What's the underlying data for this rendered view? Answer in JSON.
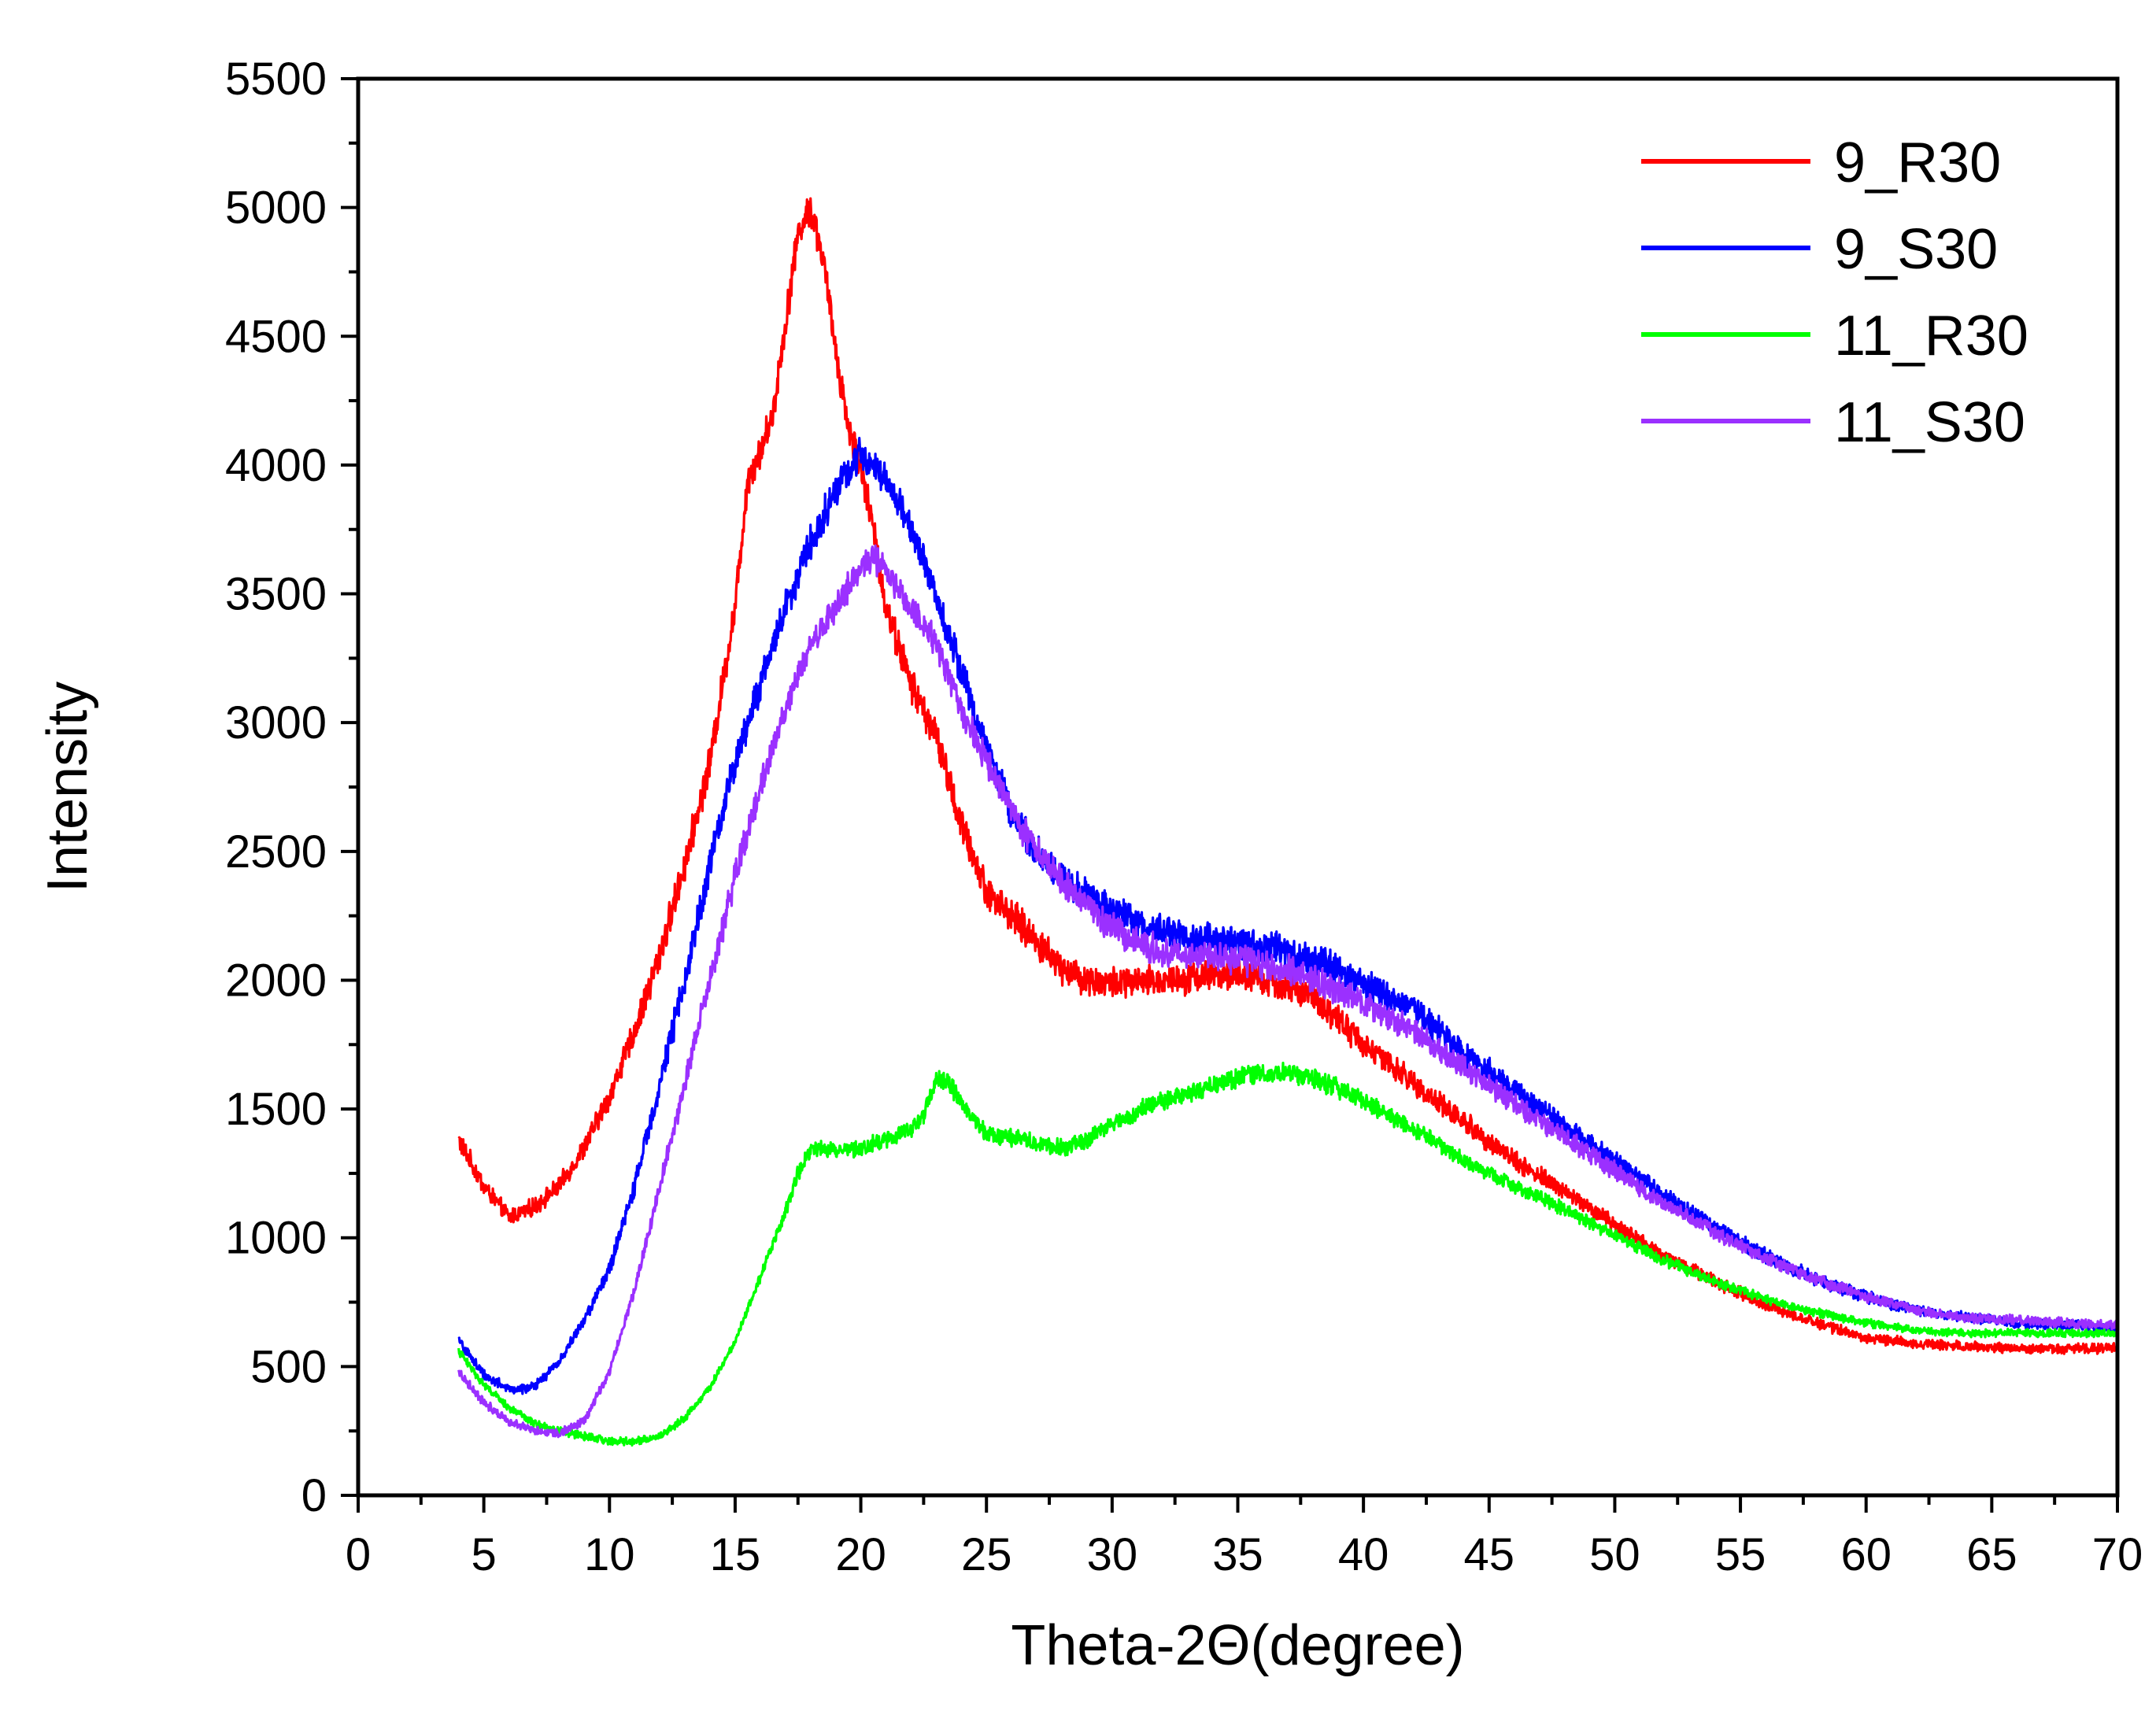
{
  "chart_data": {
    "type": "line",
    "title": "",
    "xlabel": "Theta-2Θ(degree)",
    "ylabel": "Intensity",
    "xlim": [
      0,
      70
    ],
    "ylim": [
      0,
      5500
    ],
    "x_ticks": [
      0,
      5,
      10,
      15,
      20,
      25,
      30,
      35,
      40,
      45,
      50,
      55,
      60,
      65,
      70
    ],
    "y_ticks": [
      0,
      500,
      1000,
      1500,
      2000,
      2500,
      3000,
      3500,
      4000,
      4500,
      5000,
      5500
    ],
    "grid": false,
    "legend_position": "top-right",
    "noise_amplitude": [
      90,
      90,
      70,
      80
    ],
    "series": [
      {
        "name": "9_R30",
        "color": "#ff0000",
        "x": [
          4,
          5,
          6,
          7,
          8,
          9,
          10,
          11,
          12,
          13,
          14,
          15,
          15.5,
          16,
          16.5,
          17,
          17.5,
          18,
          18.5,
          19,
          19.5,
          20,
          20.5,
          21,
          22,
          23,
          24,
          25,
          26,
          27,
          28,
          29,
          30,
          31,
          32,
          33,
          34,
          35,
          36,
          37,
          38,
          39,
          40,
          42,
          44,
          46,
          48,
          50,
          52,
          54,
          56,
          58,
          60,
          62,
          64,
          66,
          68,
          70
        ],
        "y": [
          1380,
          1200,
          1080,
          1120,
          1200,
          1350,
          1550,
          1800,
          2100,
          2450,
          2850,
          3450,
          3950,
          4050,
          4200,
          4550,
          4900,
          5000,
          4800,
          4450,
          4150,
          4000,
          3750,
          3450,
          3150,
          2950,
          2600,
          2350,
          2250,
          2150,
          2050,
          2000,
          1990,
          1990,
          2000,
          2010,
          2020,
          2020,
          2000,
          1970,
          1930,
          1850,
          1750,
          1600,
          1450,
          1300,
          1180,
          1050,
          930,
          830,
          740,
          670,
          610,
          590,
          580,
          570,
          570,
          570
        ]
      },
      {
        "name": "9_S30",
        "color": "#0000ff",
        "x": [
          4,
          5,
          6,
          7,
          8,
          9,
          10,
          11,
          12,
          13,
          14,
          15,
          16,
          17,
          18,
          19,
          20,
          21,
          22,
          23,
          24,
          25,
          26,
          27,
          28,
          29,
          30,
          31,
          32,
          33,
          34,
          35,
          36,
          37,
          38,
          39,
          40,
          42,
          44,
          46,
          48,
          50,
          52,
          54,
          56,
          58,
          60,
          62,
          64,
          66,
          68,
          70
        ],
        "y": [
          600,
          470,
          410,
          420,
          520,
          680,
          880,
          1200,
          1600,
          2000,
          2450,
          2850,
          3150,
          3450,
          3700,
          3900,
          4050,
          3950,
          3750,
          3500,
          3200,
          2900,
          2650,
          2500,
          2400,
          2330,
          2270,
          2220,
          2190,
          2170,
          2150,
          2140,
          2130,
          2110,
          2080,
          2040,
          1990,
          1880,
          1720,
          1570,
          1430,
          1300,
          1160,
          1040,
          930,
          840,
          770,
          720,
          690,
          670,
          660,
          650
        ]
      },
      {
        "name": "11_R30",
        "color": "#00ff00",
        "x": [
          4,
          5,
          6,
          7,
          8,
          9,
          10,
          11,
          12,
          13,
          14,
          15,
          16,
          17,
          17.5,
          18,
          19,
          20,
          21,
          22,
          22.5,
          23,
          23.5,
          24,
          25,
          26,
          27,
          28,
          29,
          30,
          31,
          32,
          33,
          34,
          35,
          36,
          37,
          38,
          39,
          40,
          42,
          44,
          46,
          48,
          50,
          52,
          54,
          56,
          58,
          60,
          62,
          64,
          66,
          68,
          70
        ],
        "y": [
          560,
          430,
          340,
          280,
          250,
          230,
          210,
          210,
          230,
          300,
          420,
          600,
          850,
          1100,
          1250,
          1350,
          1340,
          1350,
          1380,
          1420,
          1480,
          1620,
          1600,
          1520,
          1400,
          1390,
          1370,
          1350,
          1380,
          1440,
          1490,
          1530,
          1560,
          1590,
          1620,
          1640,
          1640,
          1620,
          1580,
          1530,
          1420,
          1300,
          1200,
          1110,
          1010,
          910,
          830,
          760,
          710,
          670,
          640,
          630,
          630,
          630,
          630
        ]
      },
      {
        "name": "11_S30",
        "color": "#9b30ff",
        "x": [
          4,
          5,
          6,
          7,
          8,
          9,
          10,
          11,
          12,
          13,
          14,
          15,
          16,
          17,
          18,
          19,
          20,
          20.5,
          21,
          22,
          23,
          24,
          25,
          26,
          27,
          28,
          29,
          30,
          31,
          32,
          33,
          34,
          35,
          36,
          37,
          38,
          39,
          40,
          42,
          44,
          46,
          48,
          50,
          52,
          54,
          56,
          58,
          60,
          62,
          64,
          66,
          68,
          70
        ],
        "y": [
          480,
          360,
          290,
          250,
          240,
          290,
          480,
          800,
          1200,
          1600,
          2000,
          2400,
          2750,
          3050,
          3300,
          3450,
          3600,
          3650,
          3580,
          3450,
          3300,
          3050,
          2850,
          2650,
          2500,
          2380,
          2280,
          2200,
          2150,
          2110,
          2100,
          2090,
          2080,
          2060,
          2040,
          2000,
          1960,
          1910,
          1800,
          1660,
          1520,
          1390,
          1260,
          1130,
          1020,
          920,
          840,
          770,
          720,
          690,
          680,
          670,
          660
        ]
      }
    ]
  }
}
